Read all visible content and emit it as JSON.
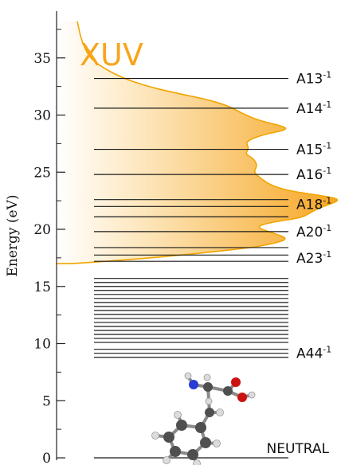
{
  "figure": {
    "spectrum_label": "XUV",
    "neutral_label": "NEUTRAL"
  },
  "colors": {
    "spectrum_stroke": "#f0a500",
    "spectrum_fill": "#f8b733",
    "level_line": "#1a1a1a",
    "axis": "#222222",
    "xuv_text": "#f7a51c",
    "n_atom": "#2a3bd4",
    "o_atom": "#cc1111",
    "c_atom": "#5b5b5b",
    "h_atom": "#dcdcdc"
  },
  "chart_data": {
    "type": "energy-level-diagram",
    "ylabel": "Energy (eV)",
    "ylim": [
      0,
      39
    ],
    "yticks": [
      {
        "value": 0,
        "label": "0"
      },
      {
        "value": 5,
        "label": "5"
      },
      {
        "value": 10,
        "label": "10"
      },
      {
        "value": 15,
        "label": "15"
      },
      {
        "value": 20,
        "label": "20"
      },
      {
        "value": 25,
        "label": "25"
      },
      {
        "value": 30,
        "label": "30"
      },
      {
        "value": 35,
        "label": "35"
      }
    ],
    "minor_ticks": [
      2.5,
      7.5,
      12.5,
      17.5,
      22.5,
      27.5,
      32.5,
      37.5
    ],
    "levels_eV": [
      0,
      8.8,
      9.15,
      9.5,
      10.1,
      10.45,
      10.8,
      11.15,
      11.5,
      11.85,
      12.2,
      12.55,
      12.9,
      13.25,
      13.6,
      13.95,
      14.3,
      14.65,
      15.0,
      15.35,
      15.7,
      17.2,
      17.75,
      18.4,
      19.8,
      21.1,
      22.0,
      22.6,
      24.8,
      27.0,
      30.6,
      33.2
    ],
    "level_labels": [
      {
        "energy": 33.2,
        "name": "A13",
        "sup": "-1"
      },
      {
        "energy": 30.6,
        "name": "A14",
        "sup": "-1"
      },
      {
        "energy": 27.0,
        "name": "A15",
        "sup": "-1"
      },
      {
        "energy": 24.8,
        "name": "A16",
        "sup": "-1"
      },
      {
        "energy": 22.2,
        "name": "A18",
        "sup": "-1"
      },
      {
        "energy": 19.8,
        "name": "A20",
        "sup": "-1"
      },
      {
        "energy": 17.5,
        "name": "A23",
        "sup": "-1"
      },
      {
        "energy": 9.15,
        "name": "A44",
        "sup": "-1"
      }
    ],
    "spectrum": {
      "name": "XUV",
      "x_unit": "relative intensity",
      "points": [
        [
          0.1,
          38.2
        ],
        [
          0.12,
          36.5
        ],
        [
          0.16,
          35.0
        ],
        [
          0.22,
          34.2
        ],
        [
          0.3,
          33.4
        ],
        [
          0.42,
          32.6
        ],
        [
          0.58,
          31.9
        ],
        [
          0.72,
          31.4
        ],
        [
          0.83,
          30.8
        ],
        [
          0.9,
          30.1
        ],
        [
          0.98,
          29.5
        ],
        [
          1.1,
          29.0
        ],
        [
          1.11,
          28.7
        ],
        [
          1.0,
          28.3
        ],
        [
          0.91,
          27.7
        ],
        [
          0.93,
          27.1
        ],
        [
          0.91,
          26.6
        ],
        [
          0.95,
          26.2
        ],
        [
          0.97,
          25.6
        ],
        [
          0.95,
          25.0
        ],
        [
          0.99,
          24.4
        ],
        [
          1.04,
          23.8
        ],
        [
          1.14,
          23.3
        ],
        [
          1.3,
          22.9
        ],
        [
          1.37,
          22.6
        ],
        [
          1.32,
          22.2
        ],
        [
          1.26,
          21.8
        ],
        [
          1.22,
          21.4
        ],
        [
          1.18,
          21.0
        ],
        [
          1.03,
          20.6
        ],
        [
          0.96,
          20.2
        ],
        [
          1.04,
          19.7
        ],
        [
          1.12,
          19.2
        ],
        [
          1.06,
          18.8
        ],
        [
          0.94,
          18.4
        ],
        [
          0.74,
          18.0
        ],
        [
          0.52,
          17.6
        ],
        [
          0.32,
          17.3
        ],
        [
          0.16,
          17.1
        ],
        [
          0.07,
          17.0
        ],
        [
          0.0,
          17.0
        ]
      ]
    }
  }
}
